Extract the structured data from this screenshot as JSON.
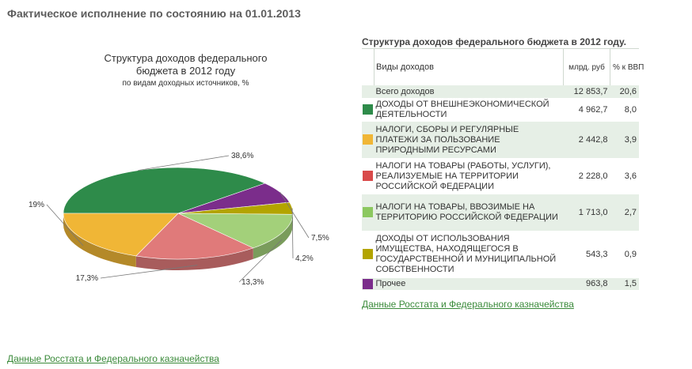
{
  "page_title": "Фактическое исполнение по состоянию на 01.01.2013",
  "source_link": "Данные Росстата и Федерального казначейства",
  "chart_data": {
    "type": "pie",
    "title": "Структура доходов федерального бюджета в 2012 году",
    "subtitle": "по видам доходных источников, %",
    "slices": [
      {
        "label": "Доходы от внешнеэкономической деятельности",
        "value": 38.6,
        "value_label": "38,6%",
        "color": "#2e8b4a"
      },
      {
        "label": "Прочее",
        "value": 7.5,
        "value_label": "7,5%",
        "color": "#7b2d8b"
      },
      {
        "label": "Доходы от использования имущества",
        "value": 4.2,
        "value_label": "4,2%",
        "color": "#b3a400"
      },
      {
        "label": "Налоги на товары, ввозимые на территорию РФ",
        "value": 13.3,
        "value_label": "13,3%",
        "color": "#a3d07a"
      },
      {
        "label": "Налоги на товары (работы, услуги), реализуемые на территории РФ",
        "value": 17.3,
        "value_label": "17,3%",
        "color": "#e07a7a"
      },
      {
        "label": "Налоги, сборы и регулярные платежи за пользование природными ресурсами",
        "value": 19,
        "value_label": "19%",
        "color": "#f0b636"
      }
    ]
  },
  "table": {
    "title": "Структура доходов федерального бюджета в 2012 году.",
    "headers": {
      "type": "Виды доходов",
      "bln": "млрд. руб",
      "gdp": "% к ВВП"
    },
    "rows": [
      {
        "label": "Всего доходов",
        "bln": "12 853,7",
        "gdp": "20,6",
        "color": ""
      },
      {
        "label": "ДОХОДЫ ОТ ВНЕШНЕЭКОНОМИЧЕСКОЙ ДЕЯТЕЛЬНОСТИ",
        "bln": "4 962,7",
        "gdp": "8,0",
        "color": "#2e8b4a"
      },
      {
        "label": "НАЛОГИ, СБОРЫ И РЕГУЛЯРНЫЕ ПЛАТЕЖИ ЗА ПОЛЬЗОВАНИЕ ПРИРОДНЫМИ РЕСУРСАМИ",
        "bln": "2 442,8",
        "gdp": "3,9",
        "color": "#f0b636"
      },
      {
        "label": "НАЛОГИ НА ТОВАРЫ (РАБОТЫ, УСЛУГИ), РЕАЛИЗУЕМЫЕ НА ТЕРРИТОРИИ РОССИЙСКОЙ ФЕДЕРАЦИИ",
        "bln": "2 228,0",
        "gdp": "3,6",
        "color": "#d94a4a"
      },
      {
        "label": "НАЛОГИ НА ТОВАРЫ, ВВОЗИМЫЕ НА ТЕРРИТОРИЮ РОССИЙСКОЙ ФЕДЕРАЦИИ",
        "bln": "1 713,0",
        "gdp": "2,7",
        "color": "#8cc860"
      },
      {
        "label": "ДОХОДЫ ОТ ИСПОЛЬЗОВАНИЯ ИМУЩЕСТВА, НАХОДЯЩЕГОСЯ В ГОСУДАРСТВЕННОЙ И МУНИЦИПАЛЬНОЙ СОБСТВЕННОСТИ",
        "bln": "543,3",
        "gdp": "0,9",
        "color": "#b3a400"
      },
      {
        "label": "Прочее",
        "bln": "963,8",
        "gdp": "1,5",
        "color": "#7b2d8b"
      }
    ]
  }
}
